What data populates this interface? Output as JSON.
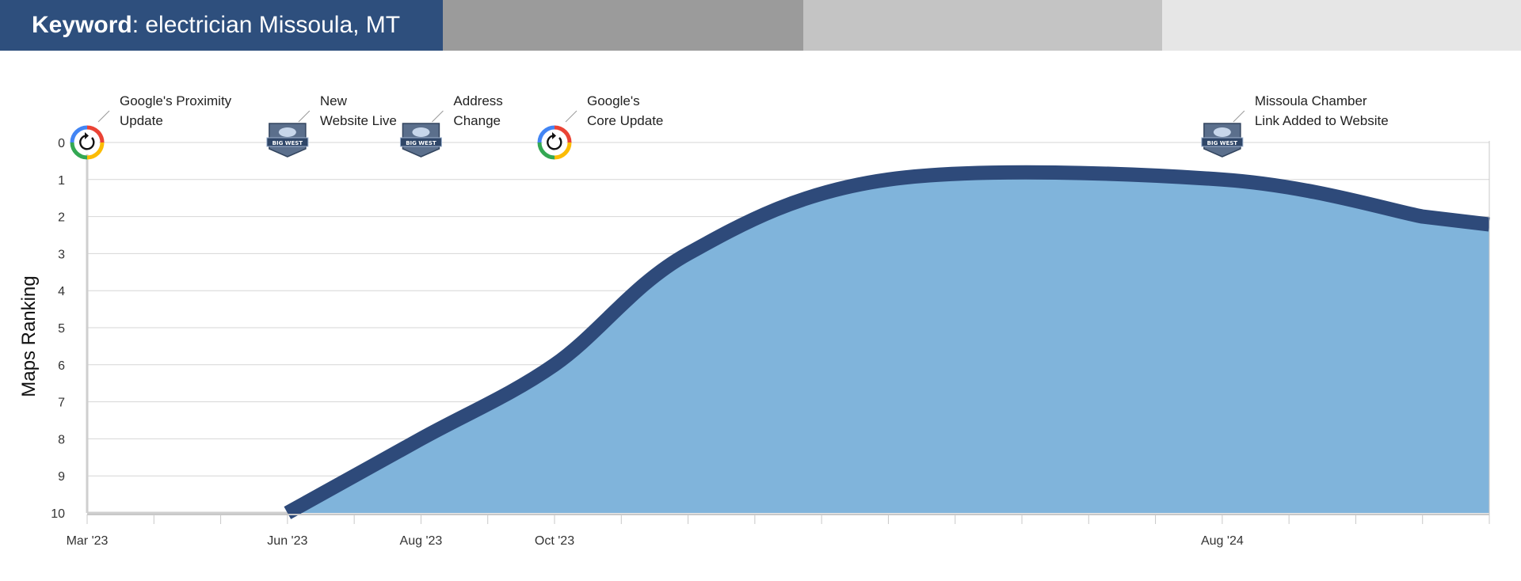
{
  "header": {
    "keyword_label": "Keyword",
    "keyword_value": ": electrician Missoula, MT",
    "colors": [
      "#2e4f7d",
      "#9b9b9b",
      "#c4c4c4",
      "#e6e6e6"
    ]
  },
  "chart_data": {
    "type": "area",
    "title": "",
    "ylabel": "Maps Ranking",
    "xlabel": "",
    "ylim": [
      0,
      10
    ],
    "y_inverted": true,
    "y_ticks": [
      "0",
      "1",
      "2",
      "3",
      "4",
      "5",
      "6",
      "7",
      "8",
      "9",
      "10"
    ],
    "x_domain": [
      "2023-03",
      "2024-12"
    ],
    "x_ticks": [
      {
        "x": "2023-03",
        "label": "Mar  '23"
      },
      {
        "x": "2023-04",
        "label": ""
      },
      {
        "x": "2023-05",
        "label": ""
      },
      {
        "x": "2023-06",
        "label": "Jun '23"
      },
      {
        "x": "2023-07",
        "label": ""
      },
      {
        "x": "2023-08",
        "label": "Aug '23"
      },
      {
        "x": "2023-09",
        "label": ""
      },
      {
        "x": "2023-10",
        "label": "Oct '23"
      },
      {
        "x": "2023-11",
        "label": ""
      },
      {
        "x": "2023-12",
        "label": ""
      },
      {
        "x": "2024-01",
        "label": ""
      },
      {
        "x": "2024-02",
        "label": ""
      },
      {
        "x": "2024-03",
        "label": ""
      },
      {
        "x": "2024-04",
        "label": ""
      },
      {
        "x": "2024-05",
        "label": ""
      },
      {
        "x": "2024-06",
        "label": ""
      },
      {
        "x": "2024-07",
        "label": ""
      },
      {
        "x": "2024-08",
        "label": "Aug '24"
      },
      {
        "x": "2024-09",
        "label": ""
      },
      {
        "x": "2024-10",
        "label": ""
      },
      {
        "x": "2024-11",
        "label": ""
      },
      {
        "x": "2024-12",
        "label": ""
      }
    ],
    "series": [
      {
        "points": [
          {
            "x": "2023-06",
            "y": 10
          },
          {
            "x": "2023-08",
            "y": 8
          },
          {
            "x": "2023-10",
            "y": 6
          },
          {
            "x": "2023-12",
            "y": 3
          },
          {
            "x": "2024-03",
            "y": 1
          },
          {
            "x": "2024-08",
            "y": 1
          },
          {
            "x": "2024-11",
            "y": 2
          }
        ],
        "fill_color": "#80b4db",
        "line_color": "#2e4a7a"
      }
    ],
    "baseline_segment": {
      "from": "2023-03",
      "to": "2023-06",
      "y": 10
    },
    "grid": true,
    "annotations": [
      {
        "x": "2023-03",
        "icon": "google-update-icon",
        "lines": [
          "Google's Proximity",
          "Update"
        ]
      },
      {
        "x": "2023-06",
        "icon": "big-west-badge-icon",
        "lines": [
          "New",
          "Website Live"
        ]
      },
      {
        "x": "2023-08",
        "icon": "big-west-badge-icon",
        "lines": [
          "Address",
          "Change"
        ]
      },
      {
        "x": "2023-10",
        "icon": "google-update-icon",
        "lines": [
          "Google's",
          "Core Update"
        ]
      },
      {
        "x": "2024-08",
        "icon": "big-west-badge-icon",
        "lines": [
          "Missoula Chamber",
          "Link Added to Website"
        ]
      }
    ],
    "badge_text": "BIG WEST"
  }
}
